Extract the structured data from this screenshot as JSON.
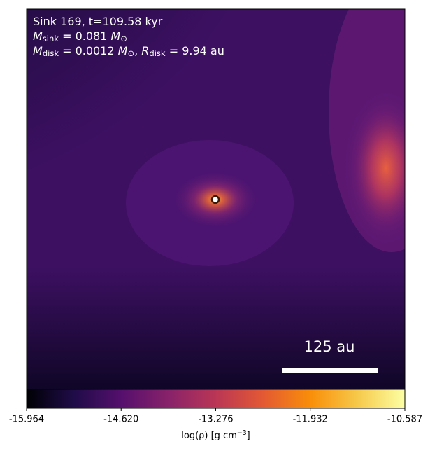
{
  "chart_data": {
    "type": "image",
    "annotations": [
      [
        {
          "text": "Sink 169, t=109.58 kyr"
        }
      ],
      [
        {
          "text": "M",
          "style": "italic"
        },
        {
          "text": "sink",
          "style": "sub"
        },
        {
          "text": " = 0.081 "
        },
        {
          "text": "M",
          "style": "italic"
        },
        {
          "text": "⊙",
          "style": "sub"
        }
      ],
      [
        {
          "text": "M",
          "style": "italic"
        },
        {
          "text": "disk",
          "style": "sub"
        },
        {
          "text": " = 0.0012 "
        },
        {
          "text": "M",
          "style": "italic"
        },
        {
          "text": "⊙",
          "style": "sub"
        },
        {
          "text": ", "
        },
        {
          "text": "R",
          "style": "italic"
        },
        {
          "text": "disk",
          "style": "sub"
        },
        {
          "text": " = 9.94 au"
        }
      ]
    ],
    "scalebar_label": "125 au",
    "colorbar": {
      "colormap": [
        "#000004",
        "#1f0c48",
        "#550f6d",
        "#88226a",
        "#ba3655",
        "#e35933",
        "#f98e09",
        "#f6c94a",
        "#fcffa4"
      ],
      "clim": [
        -15.964,
        -10.587
      ],
      "ticks": [
        -15.964,
        {
          "value": -14.62,
          "label": "-14.620"
        },
        -13.276,
        -11.932,
        -10.587
      ],
      "label": [
        {
          "text": "log(ρ) [g cm"
        },
        {
          "text": "−3",
          "style": "sup"
        },
        {
          "text": "]"
        }
      ]
    }
  }
}
